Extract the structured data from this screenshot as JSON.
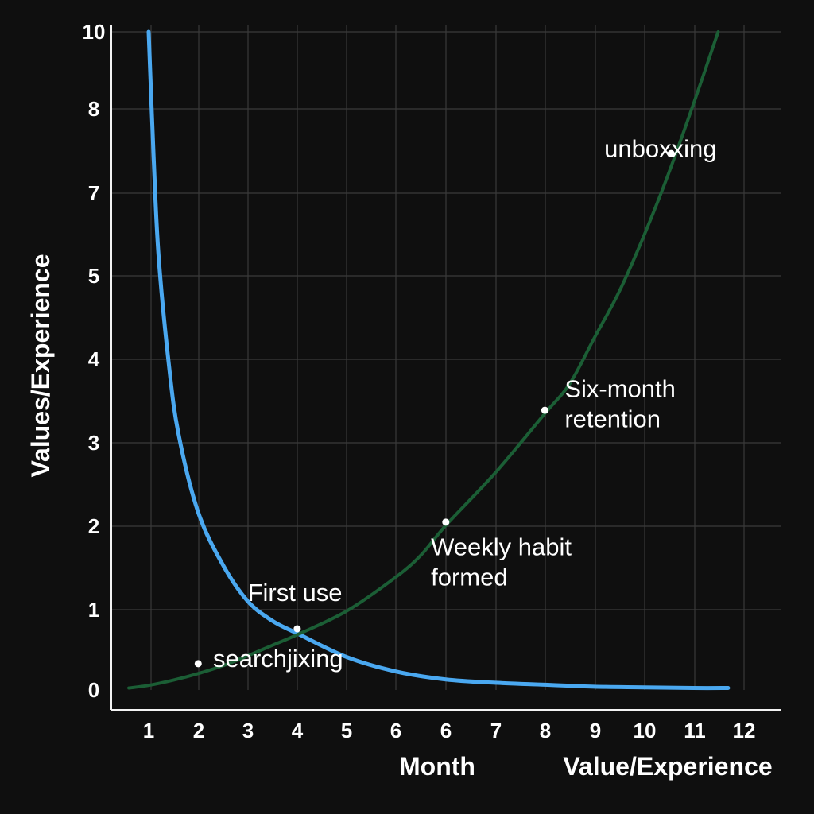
{
  "chart_data": {
    "type": "line",
    "title": "",
    "xlabel": "Month",
    "xlabel_secondary": "Value/Experience",
    "ylabel": "Values/Experience",
    "x_ticks": [
      "1",
      "2",
      "3",
      "4",
      "5",
      "6",
      "6",
      "7",
      "8",
      "9",
      "10",
      "11",
      "12"
    ],
    "y_ticks": [
      "0",
      "1",
      "2",
      "3",
      "4",
      "5",
      "7",
      "8",
      "10"
    ],
    "grid": true,
    "legend": "none",
    "series": [
      {
        "color": "#4aa8f0",
        "points": [
          [
            1.0,
            10.0
          ],
          [
            1.1,
            8.1
          ],
          [
            1.2,
            6.6
          ],
          [
            1.4,
            5.0
          ],
          [
            1.6,
            3.9
          ],
          [
            2.0,
            2.7
          ],
          [
            2.5,
            1.9
          ],
          [
            3.0,
            1.35
          ],
          [
            3.5,
            1.05
          ],
          [
            4.0,
            0.86
          ],
          [
            5.0,
            0.5
          ],
          [
            6.0,
            0.28
          ],
          [
            7.0,
            0.16
          ],
          [
            8.0,
            0.11
          ],
          [
            9.0,
            0.08
          ],
          [
            10.0,
            0.05
          ],
          [
            11.0,
            0.04
          ],
          [
            12.0,
            0.03
          ],
          [
            12.7,
            0.03
          ]
        ]
      },
      {
        "color": "#1b5e35",
        "points": [
          [
            0.6,
            0.03
          ],
          [
            1.0,
            0.07
          ],
          [
            1.5,
            0.15
          ],
          [
            2.0,
            0.25
          ],
          [
            2.5,
            0.37
          ],
          [
            3.0,
            0.52
          ],
          [
            3.5,
            0.68
          ],
          [
            4.0,
            0.84
          ],
          [
            5.0,
            1.2
          ],
          [
            6.0,
            1.72
          ],
          [
            6.5,
            2.05
          ],
          [
            7.0,
            2.5
          ],
          [
            8.0,
            3.3
          ],
          [
            9.0,
            4.2
          ],
          [
            9.5,
            4.65
          ],
          [
            10.0,
            5.35
          ],
          [
            10.5,
            6.05
          ],
          [
            11.0,
            6.9
          ],
          [
            11.5,
            7.85
          ],
          [
            12.0,
            8.9
          ],
          [
            12.5,
            10.0
          ]
        ]
      }
    ],
    "annotations": [
      {
        "lines": [
          "unboxxing"
        ],
        "x": 10.2,
        "y": 8.1,
        "dot_x": 11.55,
        "dot_y": 8.15
      },
      {
        "lines": [
          "Six-month",
          "retention"
        ],
        "x": 9.4,
        "y": 4.45,
        "dot_x": 9.0,
        "dot_y": 4.25
      },
      {
        "lines": [
          "Weekly habit",
          "formed"
        ],
        "x": 6.7,
        "y": 2.05,
        "dot_x": 7.0,
        "dot_y": 2.55
      },
      {
        "lines": [
          "First use"
        ],
        "x": 3.0,
        "y": 1.35,
        "dot_x": 4.0,
        "dot_y": 0.93
      },
      {
        "lines": [
          "searchjixing"
        ],
        "x": 2.3,
        "y": 0.35,
        "dot_x": 2.0,
        "dot_y": 0.4
      }
    ]
  }
}
